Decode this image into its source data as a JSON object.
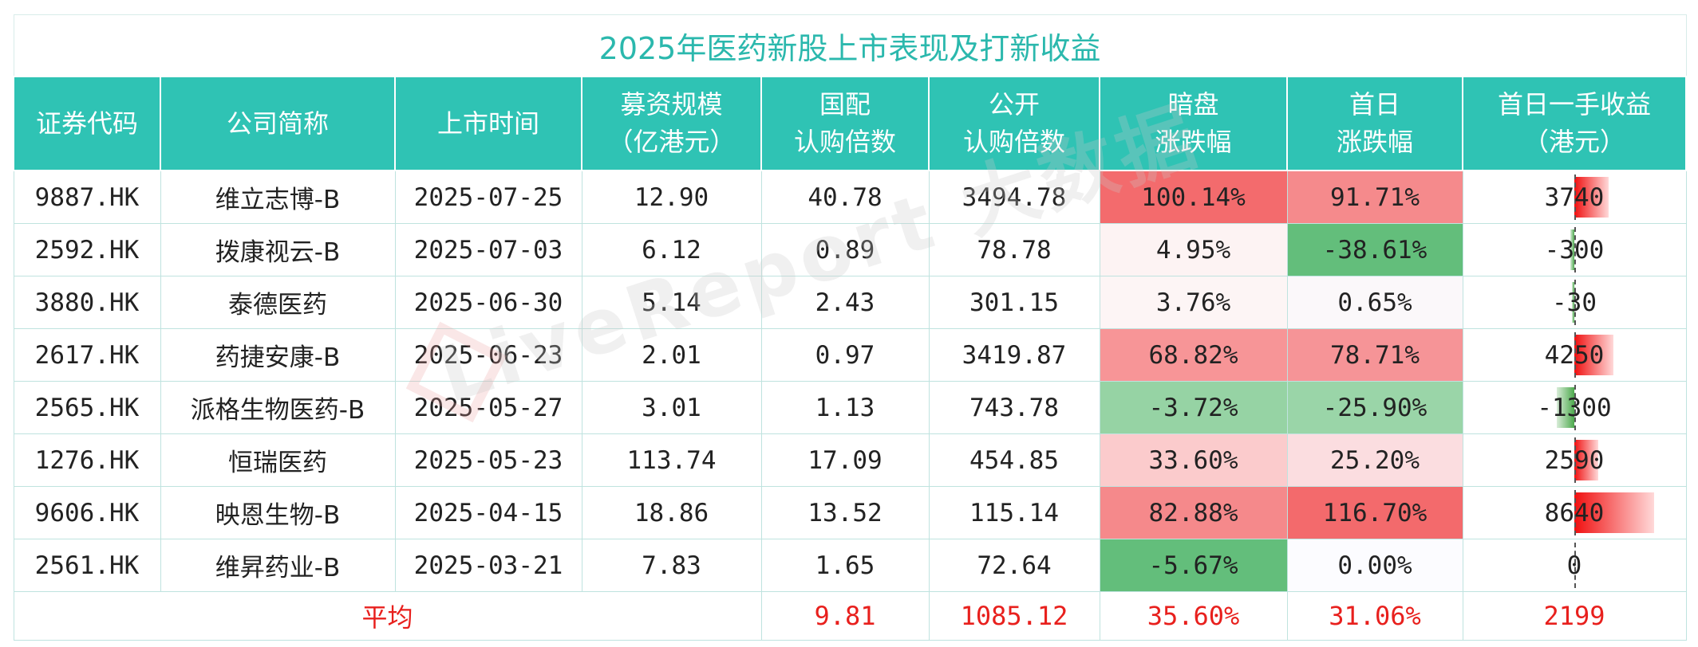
{
  "title": "2025年医药新股上市表现及打新收益",
  "headers": {
    "code": "证券代码",
    "company": "公司简称",
    "date": "上市时间",
    "raise_l1": "募资规模",
    "raise_l2": "（亿港元）",
    "intl_l1": "国配",
    "intl_l2": "认购倍数",
    "public_l1": "公开",
    "public_l2": "认购倍数",
    "dark_l1": "暗盘",
    "dark_l2": "涨跌幅",
    "first_l1": "首日",
    "first_l2": "涨跌幅",
    "earn_l1": "首日一手收益",
    "earn_l2": "（港元）"
  },
  "rows": [
    {
      "code": "9887.HK",
      "company": "维立志博-B",
      "date": "2025-07-25",
      "raise": "12.90",
      "intl": "40.78",
      "public": "3494.78",
      "dark": "100.14%",
      "first": "91.71%",
      "earn": "3740",
      "dark_color": "#f36b6d",
      "first_color": "#f58a8c",
      "earn_value": 3740
    },
    {
      "code": "2592.HK",
      "company": "拨康视云-B",
      "date": "2025-07-03",
      "raise": "6.12",
      "intl": "0.89",
      "public": "78.78",
      "dark": "4.95%",
      "first": "-38.61%",
      "earn": "-300",
      "dark_color": "#fdf3f3",
      "first_color": "#63be7b",
      "earn_value": -300
    },
    {
      "code": "3880.HK",
      "company": "泰德医药",
      "date": "2025-06-30",
      "raise": "5.14",
      "intl": "2.43",
      "public": "301.15",
      "dark": "3.76%",
      "first": "0.65%",
      "earn": "-30",
      "dark_color": "#fdf5f5",
      "first_color": "#fbf8fa",
      "earn_value": -30
    },
    {
      "code": "2617.HK",
      "company": "药捷安康-B",
      "date": "2025-06-23",
      "raise": "2.01",
      "intl": "0.97",
      "public": "3419.87",
      "dark": "68.82%",
      "first": "78.71%",
      "earn": "4250",
      "dark_color": "#f79597",
      "first_color": "#f69497",
      "earn_value": 4250
    },
    {
      "code": "2565.HK",
      "company": "派格生物医药-B",
      "date": "2025-05-27",
      "raise": "3.01",
      "intl": "1.13",
      "public": "743.78",
      "dark": "-3.72%",
      "first": "-25.90%",
      "earn": "-1300",
      "dark_color": "#96d3a4",
      "first_color": "#9ad5a8",
      "earn_value": -1300
    },
    {
      "code": "1276.HK",
      "company": "恒瑞医药",
      "date": "2025-05-23",
      "raise": "113.74",
      "intl": "17.09",
      "public": "454.85",
      "dark": "33.60%",
      "first": "25.20%",
      "earn": "2590",
      "dark_color": "#fbcbcc",
      "first_color": "#fbdde0",
      "earn_value": 2590
    },
    {
      "code": "9606.HK",
      "company": "映恩生物-B",
      "date": "2025-04-15",
      "raise": "18.86",
      "intl": "13.52",
      "public": "115.14",
      "dark": "82.88%",
      "first": "116.70%",
      "earn": "8640",
      "dark_color": "#f5898b",
      "first_color": "#f36a6c",
      "earn_value": 8640
    },
    {
      "code": "2561.HK",
      "company": "维昇药业-B",
      "date": "2025-03-21",
      "raise": "7.83",
      "intl": "1.65",
      "public": "72.64",
      "dark": "-5.67%",
      "first": "0.00%",
      "earn": "0",
      "dark_color": "#63be7b",
      "first_color": "#fcfcff",
      "earn_value": 0
    }
  ],
  "average": {
    "label": "平均",
    "intl": "9.81",
    "public": "1085.12",
    "dark": "35.60%",
    "first": "31.06%",
    "earn": "2199"
  },
  "earn_scale": {
    "max_positive": 8640,
    "max_negative": 1300
  },
  "watermark": "LiveReport 大数据",
  "colors": {
    "header_bg": "#2fc3b4",
    "title_text": "#2bb8ad",
    "accent_red": "#e8201d"
  }
}
